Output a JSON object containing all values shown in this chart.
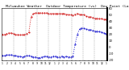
{
  "title": "  Milwaukee Weather  Outdoor Temperature (vs)  Dew Point (Last 24 Hours)",
  "bg_color": "#ffffff",
  "plot_bg": "#ffffff",
  "temp_color": "#cc0000",
  "dew_color": "#0000cc",
  "grid_color": "#999999",
  "title_fontsize": 3.2,
  "tick_fontsize": 2.8,
  "linewidth": 0.7,
  "markersize": 0.9,
  "ylim": [
    -20,
    60
  ],
  "yticks": [
    -20,
    -10,
    0,
    10,
    20,
    30,
    40,
    50,
    60
  ],
  "ytick_labels": [
    "-20",
    "-10",
    "0",
    "10",
    "20",
    "30",
    "40",
    "50",
    "60"
  ],
  "num_points": 48,
  "vline_count": 8,
  "temp_values": [
    20,
    20,
    21,
    22,
    22,
    21,
    20,
    19,
    19,
    19,
    20,
    21,
    23,
    47,
    52,
    53,
    53,
    53,
    53,
    53,
    53,
    52,
    52,
    52,
    52,
    52,
    52,
    52,
    52,
    51,
    50,
    50,
    49,
    51,
    52,
    51,
    50,
    50,
    48,
    47,
    47,
    46,
    45,
    45,
    44,
    44,
    43,
    43
  ],
  "dew_values": [
    -13,
    -13,
    -12,
    -12,
    -12,
    -13,
    -13,
    -14,
    -14,
    -15,
    -14,
    -13,
    -13,
    -14,
    -15,
    -15,
    -16,
    -16,
    -15,
    -14,
    -14,
    -15,
    -15,
    -14,
    -14,
    -15,
    -15,
    -14,
    -15,
    -14,
    -15,
    -15,
    -14,
    5,
    20,
    28,
    30,
    29,
    28,
    27,
    27,
    26,
    25,
    25,
    24,
    23,
    22,
    21
  ],
  "xtick_labels": [
    "1",
    "2",
    "3",
    "4",
    "5",
    "6",
    "7",
    "8",
    "9",
    "10",
    "11",
    "12",
    "1",
    "2",
    "3",
    "4",
    "5",
    "6",
    "7",
    "8",
    "9",
    "10",
    "11",
    "12",
    "1"
  ],
  "right_bar_color": "#000000"
}
